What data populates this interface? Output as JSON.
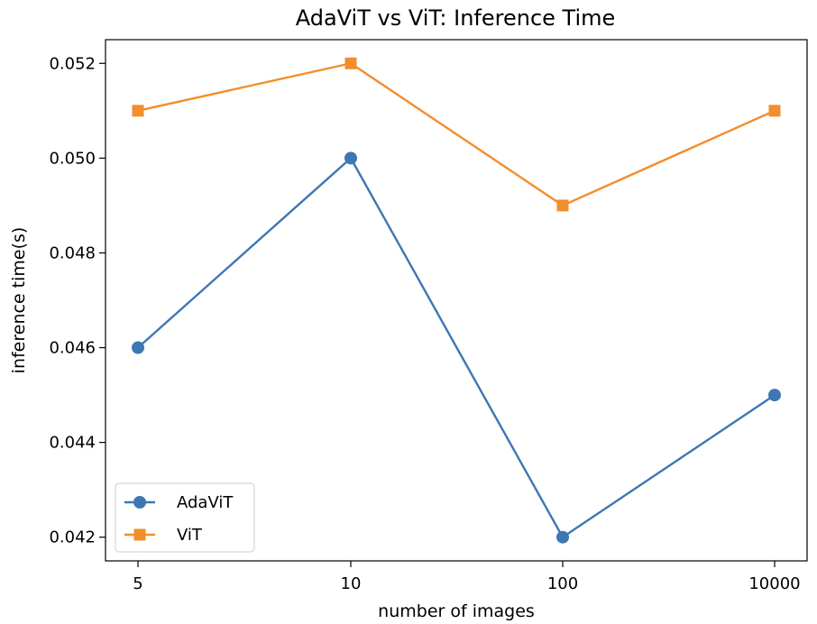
{
  "chart_data": {
    "type": "line",
    "title": "AdaViT vs ViT: Inference Time",
    "xlabel": "number of images",
    "ylabel": "inference time(s)",
    "categories": [
      "5",
      "10",
      "100",
      "10000"
    ],
    "ylim": [
      0.0415,
      0.0525
    ],
    "yticks": [
      "0.042",
      "0.044",
      "0.046",
      "0.048",
      "0.050",
      "0.052"
    ],
    "grid": false,
    "legend_position": "lower-left",
    "series": [
      {
        "name": "AdaViT",
        "values": [
          0.046,
          0.05,
          0.042,
          0.045
        ],
        "color": "#3d77b4",
        "marker": "circle"
      },
      {
        "name": "ViT",
        "values": [
          0.051,
          0.052,
          0.049,
          0.051
        ],
        "color": "#f28e2c",
        "marker": "square"
      }
    ]
  }
}
